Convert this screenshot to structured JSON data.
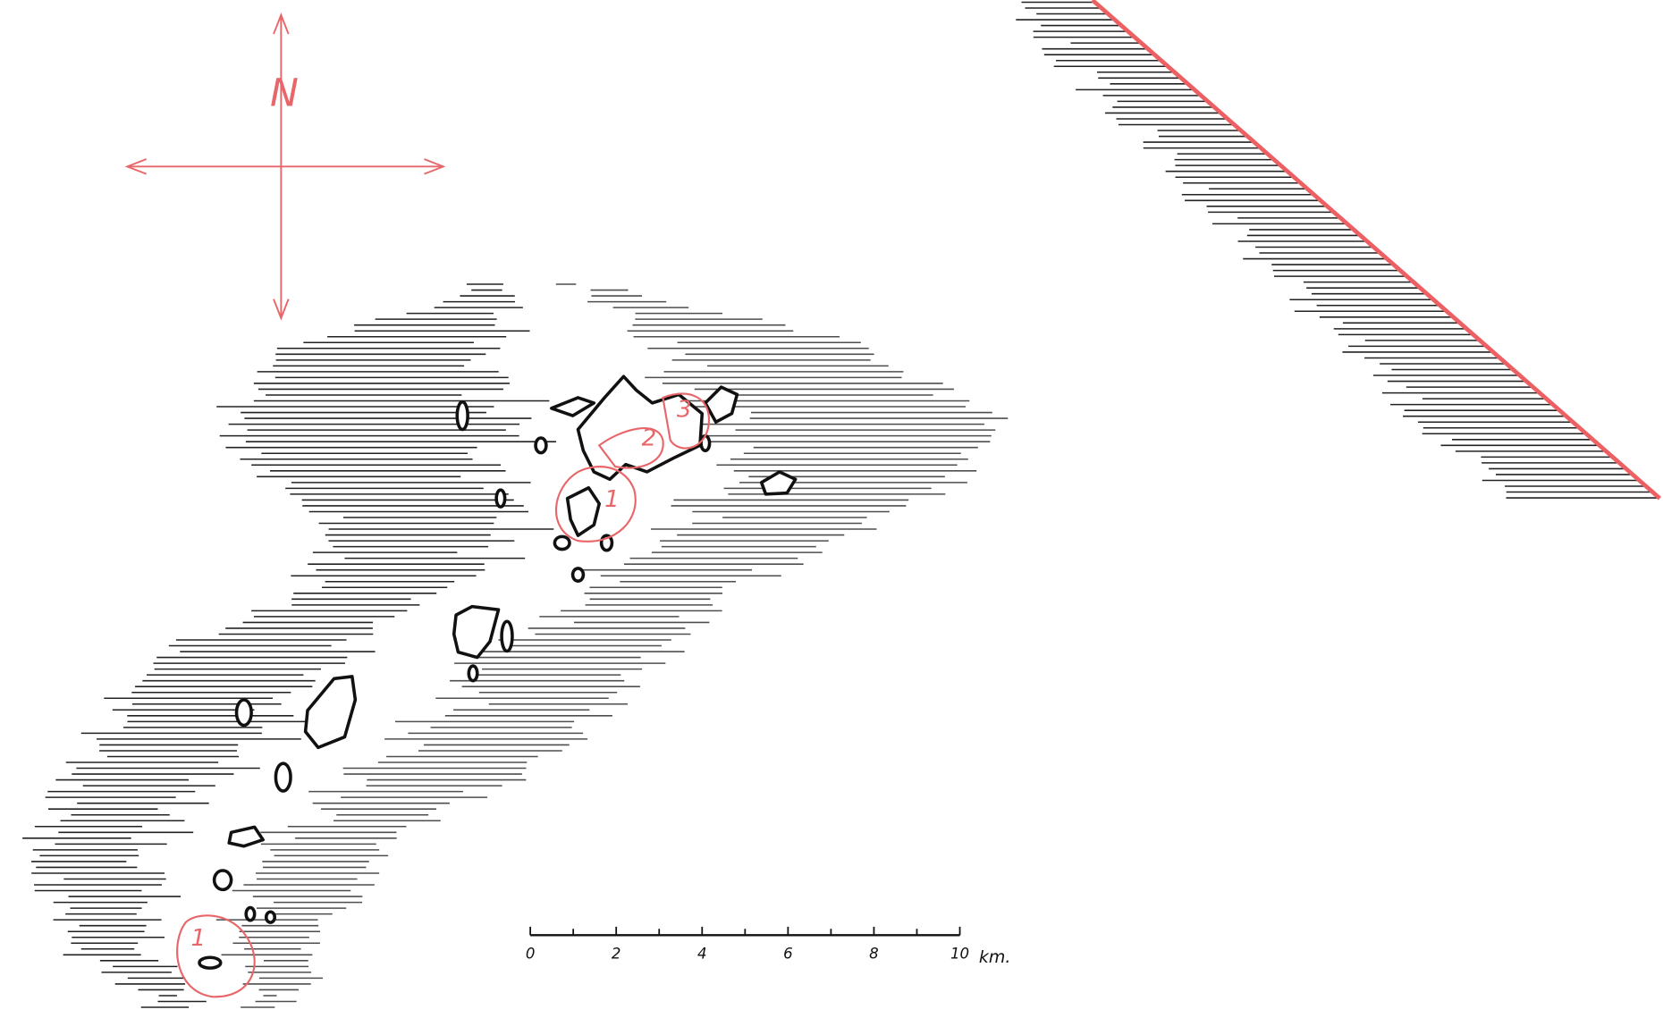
{
  "compass": {
    "label": "N"
  },
  "zones": [
    {
      "label": "1"
    },
    {
      "label": "2"
    },
    {
      "label": "3"
    },
    {
      "label": "1"
    }
  ],
  "scale": {
    "ticks": [
      0,
      2,
      4,
      6,
      8,
      10
    ],
    "unit": "km."
  }
}
